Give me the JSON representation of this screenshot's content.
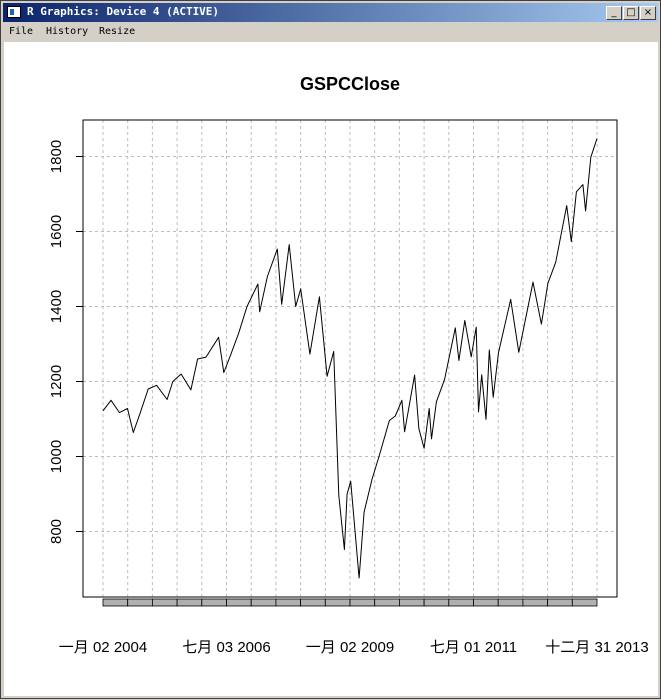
{
  "window": {
    "title": "R Graphics: Device 4 (ACTIVE)",
    "minimize_glyph": "_",
    "maximize_glyph": "□",
    "close_glyph": "×"
  },
  "menu": {
    "items": [
      "File",
      "History",
      "Resize"
    ]
  },
  "chart_data": {
    "type": "line",
    "title": "GSPCClose",
    "xlabel": "",
    "ylabel": "",
    "x_tick_labels": [
      "一月 02 2004",
      "七月 03 2006",
      "一月 02 2009",
      "七月 01 2011",
      "十二月 31 2013"
    ],
    "y_tick_labels": [
      "800",
      "1000",
      "1200",
      "1400",
      "1600",
      "1800"
    ],
    "ylim": [
      680,
      1850
    ],
    "xlim": [
      "2004-01-02",
      "2013-12-31"
    ],
    "grid": true,
    "series": [
      {
        "color": "#000000",
        "x": [
          "2004-01-02",
          "2004-03-01",
          "2004-05-03",
          "2004-07-01",
          "2004-08-13",
          "2004-10-01",
          "2004-12-01",
          "2005-02-01",
          "2005-04-20",
          "2005-06-01",
          "2005-08-01",
          "2005-10-13",
          "2005-12-01",
          "2006-02-01",
          "2006-05-05",
          "2006-06-13",
          "2006-08-01",
          "2006-10-02",
          "2006-12-01",
          "2007-02-20",
          "2007-03-05",
          "2007-05-01",
          "2007-07-13",
          "2007-08-15",
          "2007-10-09",
          "2007-11-26",
          "2008-01-02",
          "2008-03-10",
          "2008-05-19",
          "2008-07-15",
          "2008-09-02",
          "2008-10-10",
          "2008-11-20",
          "2008-12-10",
          "2009-01-06",
          "2009-03-09",
          "2009-04-15",
          "2009-06-12",
          "2009-08-03",
          "2009-10-19",
          "2009-12-01",
          "2010-01-19",
          "2010-02-08",
          "2010-04-23",
          "2010-05-25",
          "2010-07-02",
          "2010-08-09",
          "2010-08-26",
          "2010-10-01",
          "2010-12-01",
          "2011-02-18",
          "2011-03-16",
          "2011-04-29",
          "2011-06-15",
          "2011-07-22",
          "2011-08-08",
          "2011-09-01",
          "2011-10-03",
          "2011-10-27",
          "2011-11-25",
          "2012-01-03",
          "2012-04-02",
          "2012-06-01",
          "2012-09-14",
          "2012-11-15",
          "2013-01-02",
          "2013-03-01",
          "2013-05-21",
          "2013-06-24",
          "2013-08-01",
          "2013-09-18",
          "2013-10-08",
          "2013-11-15",
          "2013-12-31"
        ],
        "values": [
          1122,
          1150,
          1117,
          1128,
          1064,
          1114,
          1180,
          1190,
          1152,
          1200,
          1220,
          1178,
          1260,
          1265,
          1318,
          1224,
          1270,
          1330,
          1400,
          1460,
          1386,
          1480,
          1553,
          1406,
          1565,
          1400,
          1447,
          1273,
          1426,
          1214,
          1280,
          896,
          752,
          900,
          934,
          676,
          852,
          939,
          1000,
          1096,
          1108,
          1150,
          1066,
          1217,
          1074,
          1022,
          1128,
          1047,
          1146,
          1206,
          1343,
          1256,
          1363,
          1266,
          1345,
          1119,
          1218,
          1099,
          1284,
          1158,
          1277,
          1419,
          1278,
          1465,
          1353,
          1462,
          1518,
          1669,
          1573,
          1706,
          1725,
          1655,
          1798,
          1848
        ]
      }
    ]
  }
}
